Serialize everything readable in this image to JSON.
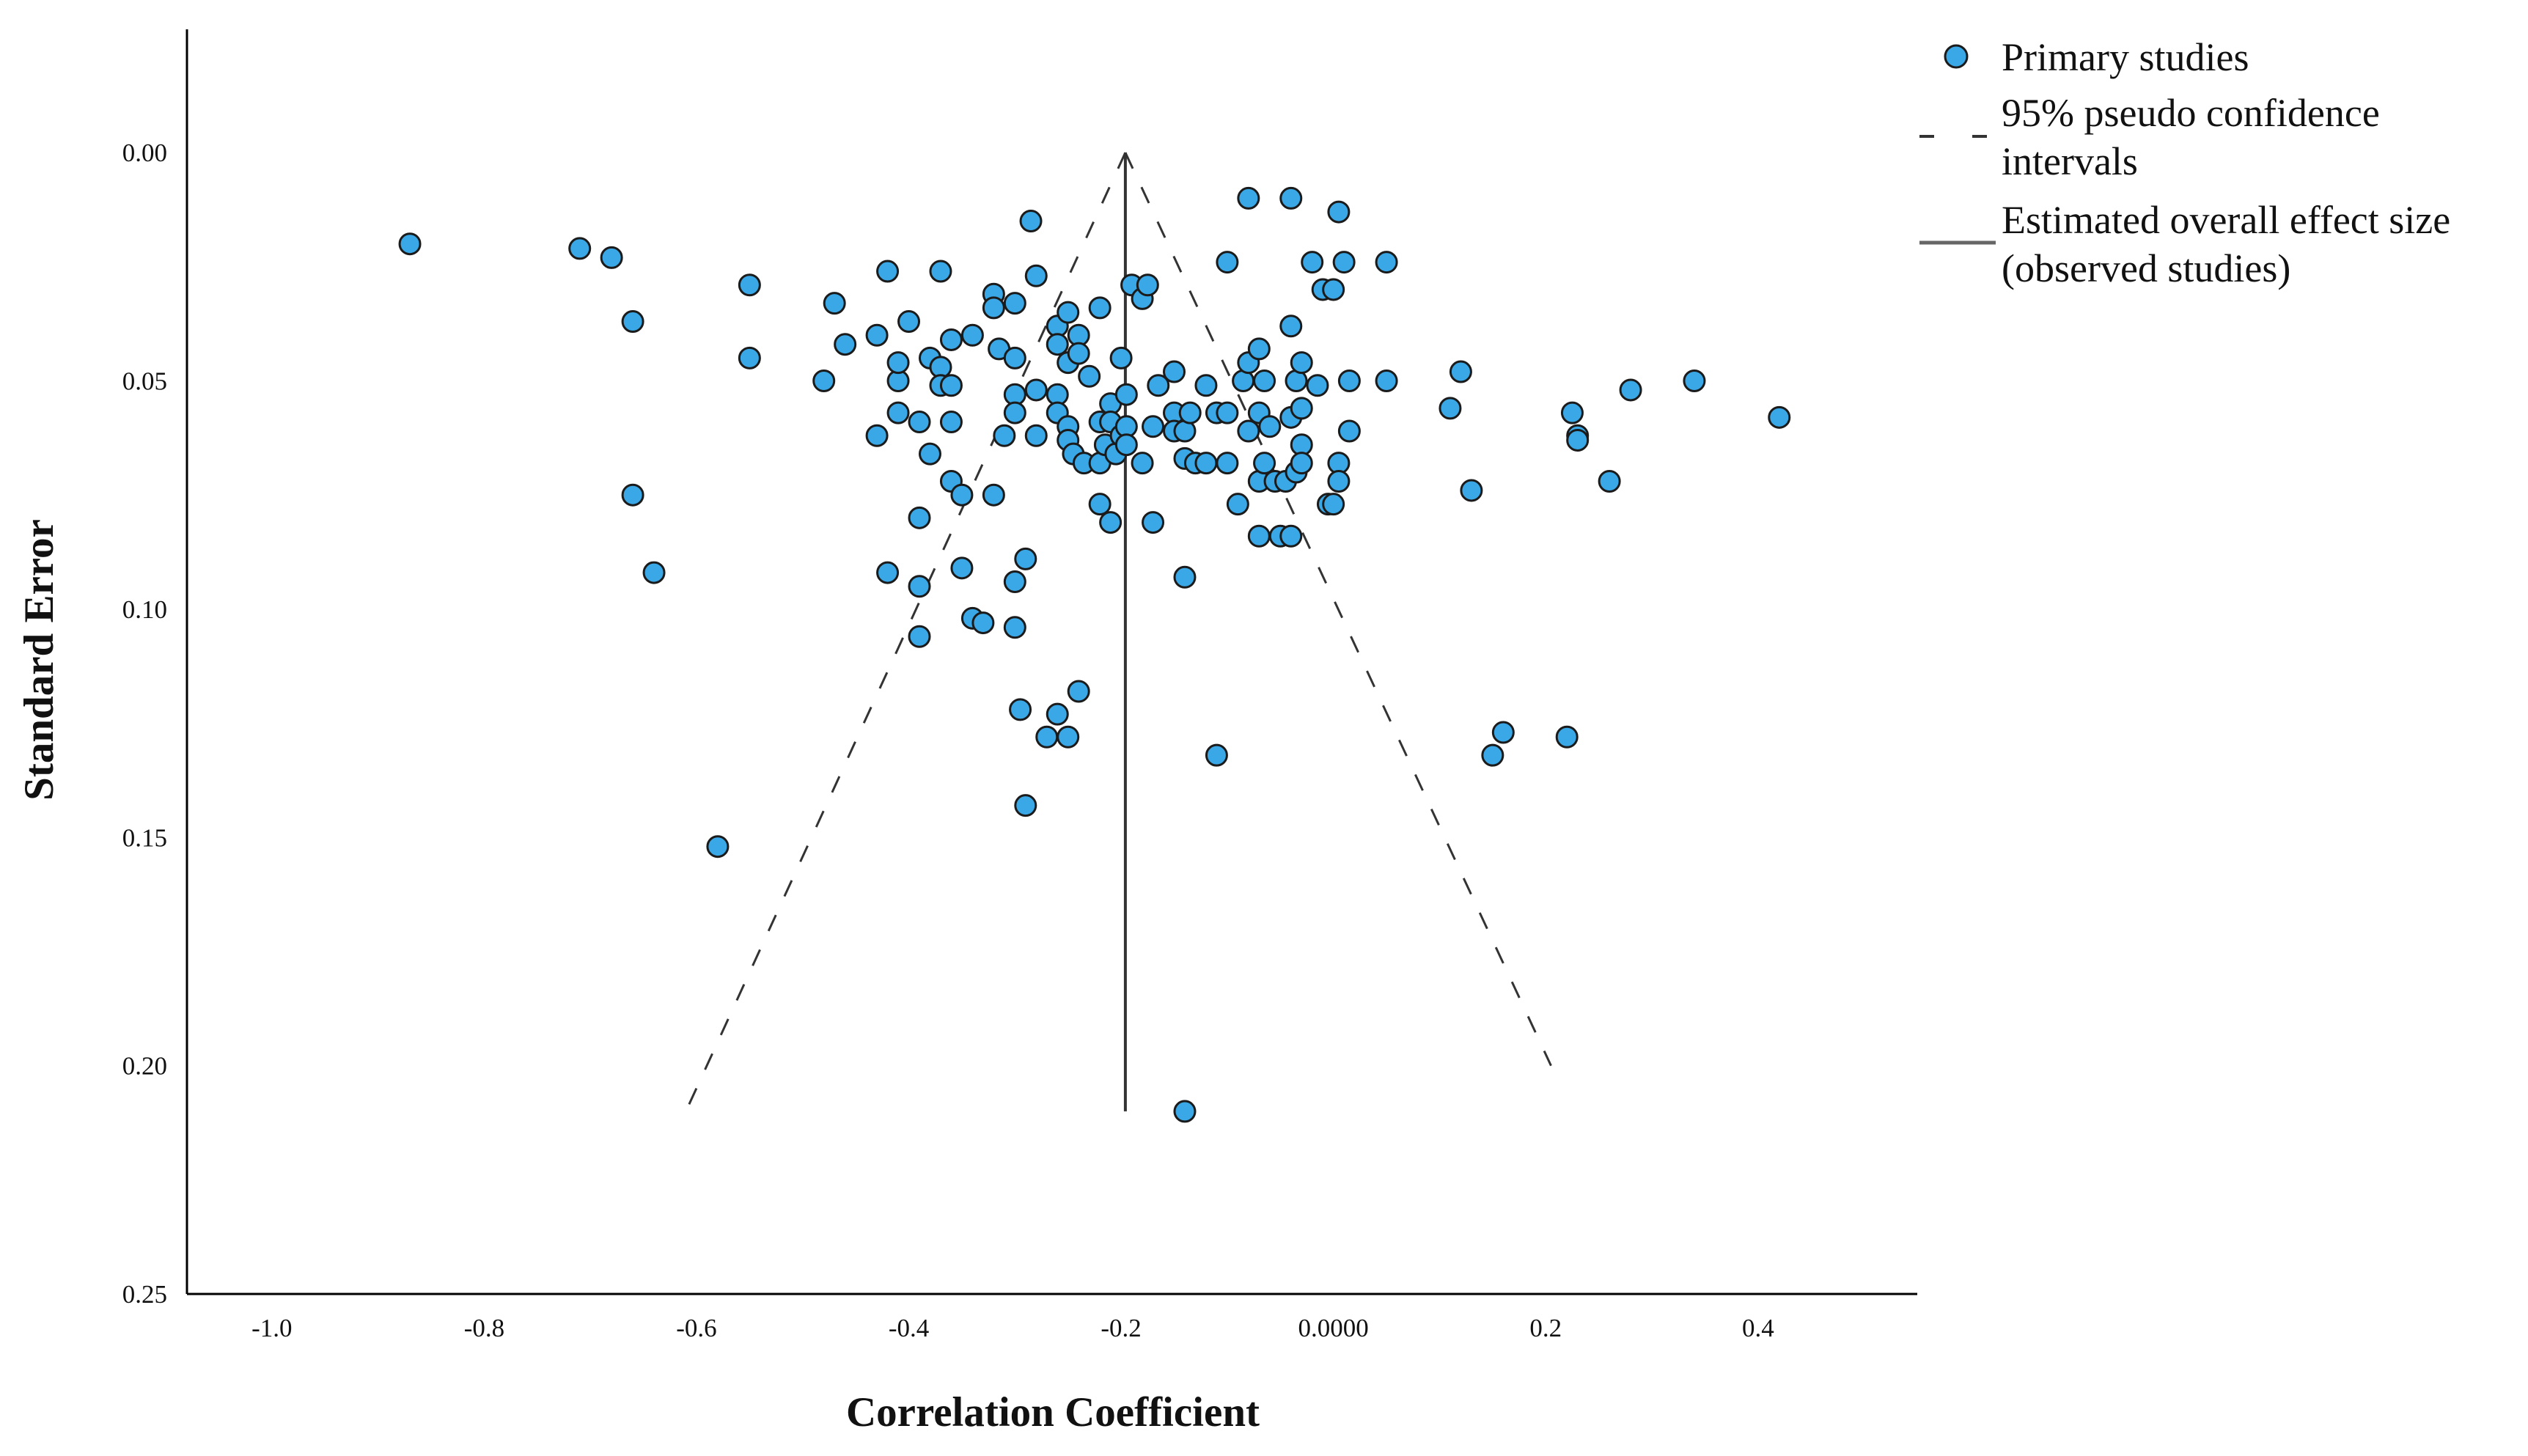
{
  "chart_data": {
    "type": "scatter",
    "xlabel": "Correlation Coefficient",
    "ylabel": "Standard Error",
    "xlim": [
      -1.08,
      0.55
    ],
    "ylim": [
      0.25,
      -0.027
    ],
    "y_inverted": true,
    "xticks": [
      -1.0,
      -0.8,
      -0.6,
      -0.4,
      -0.2,
      0.0,
      0.2,
      0.4
    ],
    "xtick_labels": [
      "-1.0",
      "-0.8",
      "-0.6",
      "-0.4",
      "-0.2",
      "0.0000",
      "0.2",
      "0.4"
    ],
    "yticks": [
      0.0,
      0.05,
      0.1,
      0.15,
      0.2,
      0.25
    ],
    "ytick_labels": [
      "0.00",
      "0.05",
      "0.10",
      "0.15",
      "0.20",
      "0.25"
    ],
    "grid": false,
    "legend_position": "top-right",
    "colors": {
      "points": "#3aa8e6",
      "point_edge": "#1b1b1b",
      "lines": "#333333"
    },
    "series": [
      {
        "name": "Primary studies",
        "kind": "points",
        "points": [
          [
            -0.87,
            0.02
          ],
          [
            -0.71,
            0.021
          ],
          [
            -0.68,
            0.023
          ],
          [
            -0.66,
            0.037
          ],
          [
            -0.66,
            0.075
          ],
          [
            -0.64,
            0.092
          ],
          [
            -0.58,
            0.152
          ],
          [
            -0.55,
            0.029
          ],
          [
            -0.55,
            0.045
          ],
          [
            -0.48,
            0.05
          ],
          [
            -0.47,
            0.033
          ],
          [
            -0.46,
            0.042
          ],
          [
            -0.43,
            0.062
          ],
          [
            -0.43,
            0.04
          ],
          [
            -0.42,
            0.026
          ],
          [
            -0.42,
            0.092
          ],
          [
            -0.41,
            0.05
          ],
          [
            -0.41,
            0.046
          ],
          [
            -0.41,
            0.057
          ],
          [
            -0.4,
            0.037
          ],
          [
            -0.39,
            0.08
          ],
          [
            -0.39,
            0.095
          ],
          [
            -0.39,
            0.106
          ],
          [
            -0.39,
            0.059
          ],
          [
            -0.38,
            0.045
          ],
          [
            -0.38,
            0.066
          ],
          [
            -0.37,
            0.047
          ],
          [
            -0.37,
            0.051
          ],
          [
            -0.37,
            0.026
          ],
          [
            -0.36,
            0.051
          ],
          [
            -0.36,
            0.059
          ],
          [
            -0.36,
            0.072
          ],
          [
            -0.36,
            0.041
          ],
          [
            -0.35,
            0.091
          ],
          [
            -0.35,
            0.075
          ],
          [
            -0.34,
            0.102
          ],
          [
            -0.34,
            0.04
          ],
          [
            -0.33,
            0.103
          ],
          [
            -0.32,
            0.075
          ],
          [
            -0.32,
            0.031
          ],
          [
            -0.32,
            0.034
          ],
          [
            -0.315,
            0.043
          ],
          [
            -0.31,
            0.062
          ],
          [
            -0.3,
            0.033
          ],
          [
            -0.3,
            0.045
          ],
          [
            -0.3,
            0.053
          ],
          [
            -0.3,
            0.057
          ],
          [
            -0.3,
            0.094
          ],
          [
            -0.3,
            0.104
          ],
          [
            -0.295,
            0.122
          ],
          [
            -0.29,
            0.089
          ],
          [
            -0.29,
            0.143
          ],
          [
            -0.285,
            0.015
          ],
          [
            -0.28,
            0.052
          ],
          [
            -0.28,
            0.062
          ],
          [
            -0.28,
            0.027
          ],
          [
            -0.27,
            0.128
          ],
          [
            -0.26,
            0.123
          ],
          [
            -0.26,
            0.038
          ],
          [
            -0.26,
            0.042
          ],
          [
            -0.26,
            0.053
          ],
          [
            -0.26,
            0.057
          ],
          [
            -0.25,
            0.128
          ],
          [
            -0.25,
            0.035
          ],
          [
            -0.25,
            0.046
          ],
          [
            -0.25,
            0.06
          ],
          [
            -0.25,
            0.063
          ],
          [
            -0.245,
            0.066
          ],
          [
            -0.24,
            0.118
          ],
          [
            -0.24,
            0.04
          ],
          [
            -0.24,
            0.044
          ],
          [
            -0.235,
            0.068
          ],
          [
            -0.23,
            0.049
          ],
          [
            -0.22,
            0.034
          ],
          [
            -0.22,
            0.059
          ],
          [
            -0.22,
            0.068
          ],
          [
            -0.22,
            0.077
          ],
          [
            -0.215,
            0.064
          ],
          [
            -0.21,
            0.081
          ],
          [
            -0.21,
            0.055
          ],
          [
            -0.21,
            0.059
          ],
          [
            -0.205,
            0.066
          ],
          [
            -0.2,
            0.045
          ],
          [
            -0.2,
            0.062
          ],
          [
            -0.195,
            0.053
          ],
          [
            -0.195,
            0.06
          ],
          [
            -0.195,
            0.064
          ],
          [
            -0.19,
            0.029
          ],
          [
            -0.18,
            0.068
          ],
          [
            -0.18,
            0.032
          ],
          [
            -0.175,
            0.029
          ],
          [
            -0.17,
            0.081
          ],
          [
            -0.17,
            0.06
          ],
          [
            -0.165,
            0.051
          ],
          [
            -0.15,
            0.048
          ],
          [
            -0.15,
            0.057
          ],
          [
            -0.15,
            0.061
          ],
          [
            -0.14,
            0.093
          ],
          [
            -0.14,
            0.21
          ],
          [
            -0.14,
            0.061
          ],
          [
            -0.14,
            0.067
          ],
          [
            -0.135,
            0.057
          ],
          [
            -0.13,
            0.068
          ],
          [
            -0.12,
            0.051
          ],
          [
            -0.12,
            0.068
          ],
          [
            -0.11,
            0.057
          ],
          [
            -0.11,
            0.132
          ],
          [
            -0.1,
            0.024
          ],
          [
            -0.1,
            0.057
          ],
          [
            -0.1,
            0.068
          ],
          [
            -0.09,
            0.077
          ],
          [
            -0.085,
            0.05
          ],
          [
            -0.08,
            0.046
          ],
          [
            -0.08,
            0.061
          ],
          [
            -0.08,
            0.01
          ],
          [
            -0.07,
            0.043
          ],
          [
            -0.07,
            0.057
          ],
          [
            -0.07,
            0.072
          ],
          [
            -0.07,
            0.084
          ],
          [
            -0.065,
            0.05
          ],
          [
            -0.065,
            0.068
          ],
          [
            -0.06,
            0.06
          ],
          [
            -0.055,
            0.072
          ],
          [
            -0.05,
            0.084
          ],
          [
            -0.045,
            0.072
          ],
          [
            -0.04,
            0.01
          ],
          [
            -0.04,
            0.038
          ],
          [
            -0.04,
            0.058
          ],
          [
            -0.04,
            0.084
          ],
          [
            -0.035,
            0.05
          ],
          [
            -0.035,
            0.07
          ],
          [
            -0.03,
            0.046
          ],
          [
            -0.03,
            0.056
          ],
          [
            -0.03,
            0.064
          ],
          [
            -0.03,
            0.068
          ],
          [
            -0.02,
            0.024
          ],
          [
            -0.015,
            0.051
          ],
          [
            -0.01,
            0.03
          ],
          [
            0.0,
            0.03
          ],
          [
            -0.005,
            0.077
          ],
          [
            0.0,
            0.077
          ],
          [
            0.005,
            0.068
          ],
          [
            0.005,
            0.072
          ],
          [
            0.005,
            0.013
          ],
          [
            0.01,
            0.024
          ],
          [
            0.015,
            0.05
          ],
          [
            0.015,
            0.061
          ],
          [
            0.05,
            0.024
          ],
          [
            0.05,
            0.05
          ],
          [
            0.11,
            0.056
          ],
          [
            0.12,
            0.048
          ],
          [
            0.13,
            0.074
          ],
          [
            0.15,
            0.132
          ],
          [
            0.16,
            0.127
          ],
          [
            0.22,
            0.128
          ],
          [
            0.225,
            0.057
          ],
          [
            0.23,
            0.062
          ],
          [
            0.23,
            0.063
          ],
          [
            0.26,
            0.072
          ],
          [
            0.28,
            0.052
          ],
          [
            0.34,
            0.05
          ],
          [
            0.42,
            0.058
          ]
        ]
      },
      {
        "name": "95% pseudo confidence intervals",
        "kind": "dashed-lines",
        "lines": [
          [
            [
              -0.196,
              0.0
            ],
            [
              -0.61,
              0.21
            ]
          ],
          [
            [
              -0.196,
              0.0
            ],
            [
              0.205,
              0.2
            ]
          ]
        ]
      },
      {
        "name": "Estimated overall effect size (observed studies)",
        "kind": "vertical-line",
        "x": -0.196,
        "y_range": [
          0.0,
          0.21
        ]
      }
    ],
    "legend": [
      {
        "label_lines": [
          "Primary studies"
        ],
        "symbol": "circle"
      },
      {
        "label_lines": [
          "95% pseudo confidence",
          "intervals"
        ],
        "symbol": "dashed"
      },
      {
        "label_lines": [
          "Estimated overall effect size",
          "(observed studies)"
        ],
        "symbol": "solid"
      }
    ]
  }
}
